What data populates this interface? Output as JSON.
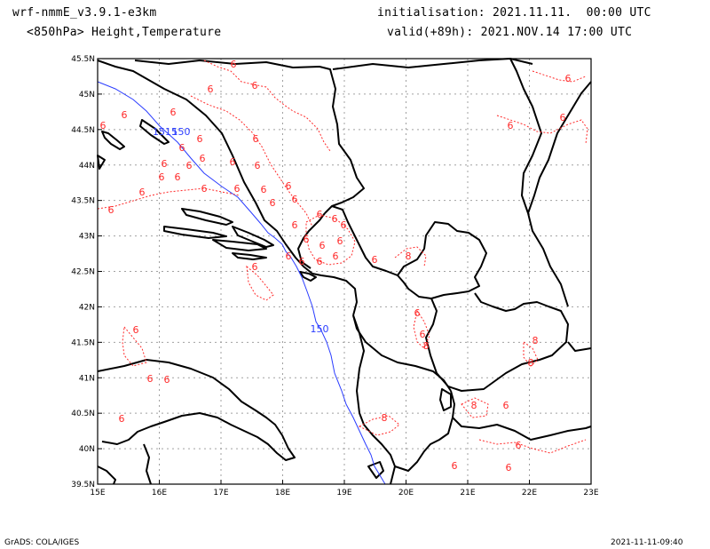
{
  "header": {
    "model": "wrf-nmmE_v3.9.1-e3km",
    "field": "<850hPa> Height,Temperature",
    "init": "initialisation: 2021.11.11.  00:00 UTC",
    "valid": "valid(+89h): 2021.NOV.14 17:00 UTC"
  },
  "footer": {
    "left": "GrADS: COLA/IGES",
    "right": "2021-11-11-09:40"
  },
  "map": {
    "lon_ticks": [
      "15E",
      "16E",
      "17E",
      "18E",
      "19E",
      "20E",
      "21E",
      "22E",
      "23E"
    ],
    "lat_ticks": [
      "45.5N",
      "45N",
      "44.5N",
      "44N",
      "43.5N",
      "43N",
      "42.5N",
      "42N",
      "41.5N",
      "41N",
      "40.5N",
      "40N",
      "39.5N"
    ],
    "colors": {
      "coast": "#000000",
      "height_contour": "#2a3cff",
      "temperature_contour": "#ff2a2a",
      "grid": "#a0a0a0"
    },
    "height_labels": [
      "1515",
      "150",
      "150"
    ],
    "temperature_labels": [
      "6",
      "6",
      "6",
      "6",
      "6",
      "6",
      "6",
      "6",
      "6",
      "6",
      "6",
      "6",
      "6",
      "6",
      "6",
      "6",
      "6",
      "6",
      "6",
      "6",
      "6",
      "6",
      "6",
      "6",
      "6",
      "6",
      "6",
      "6",
      "6",
      "6",
      "6",
      "6",
      "6",
      "6",
      "6",
      "6",
      "6",
      "8",
      "6",
      "6",
      "6",
      "6",
      "6",
      "6",
      "8",
      "8",
      "8",
      "6",
      "6",
      "6",
      "8",
      "8",
      "6",
      "6",
      "6",
      "6"
    ]
  }
}
